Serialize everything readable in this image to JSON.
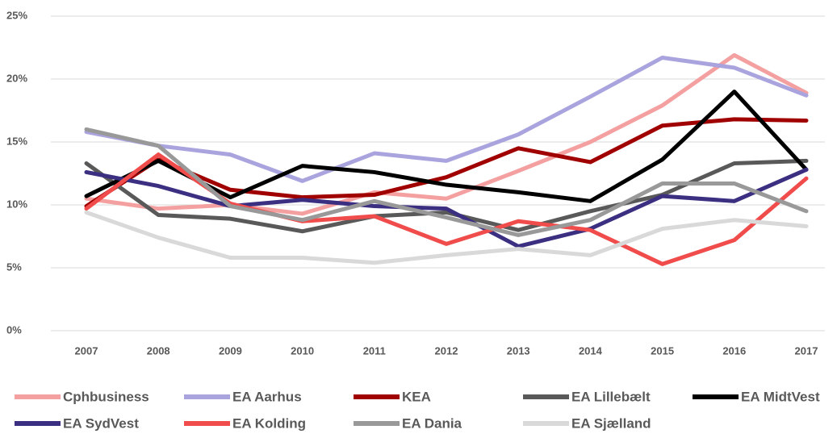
{
  "chart_data": {
    "type": "line",
    "categories": [
      "2007",
      "2008",
      "2009",
      "2010",
      "2011",
      "2012",
      "2013",
      "2014",
      "2015",
      "2016",
      "2017"
    ],
    "ylim": [
      0,
      25
    ],
    "yticks": [
      {
        "value": 0,
        "label": "0%"
      },
      {
        "value": 5,
        "label": "5%"
      },
      {
        "value": 10,
        "label": "10%"
      },
      {
        "value": 15,
        "label": "15%"
      },
      {
        "value": 20,
        "label": "20%"
      },
      {
        "value": 25,
        "label": "25%"
      }
    ],
    "grid": true,
    "legend": "bottom",
    "series": [
      {
        "name": "Cphbusiness",
        "color": "#f4a0a0",
        "values": [
          10.5,
          9.7,
          10.0,
          9.3,
          11.0,
          10.5,
          12.7,
          15.0,
          17.9,
          21.9,
          18.9
        ]
      },
      {
        "name": "EA Aarhus",
        "color": "#a9a4de",
        "values": [
          15.8,
          14.7,
          14.0,
          11.9,
          14.1,
          13.5,
          15.6,
          18.6,
          21.7,
          20.9,
          18.7
        ]
      },
      {
        "name": "KEA",
        "color": "#a00000",
        "values": [
          9.9,
          13.6,
          11.2,
          10.6,
          10.8,
          12.2,
          14.5,
          13.4,
          16.3,
          16.8,
          16.7
        ]
      },
      {
        "name": "EA Lillebælt",
        "color": "#595959",
        "values": [
          13.3,
          9.2,
          8.9,
          7.9,
          9.1,
          9.4,
          8.0,
          9.5,
          10.8,
          13.3,
          13.5
        ]
      },
      {
        "name": "EA MidtVest",
        "color": "#000000",
        "values": [
          10.7,
          13.5,
          10.6,
          13.1,
          12.6,
          11.6,
          11.0,
          10.3,
          13.6,
          19.0,
          12.8
        ]
      },
      {
        "name": "EA SydVest",
        "color": "#3a2f80",
        "values": [
          12.6,
          11.5,
          9.9,
          10.4,
          9.9,
          9.7,
          6.7,
          8.1,
          10.7,
          10.3,
          12.8
        ]
      },
      {
        "name": "EA Kolding",
        "color": "#f04c4c",
        "values": [
          9.7,
          14.0,
          10.1,
          8.7,
          9.1,
          6.9,
          8.7,
          8.0,
          5.3,
          7.2,
          12.1
        ]
      },
      {
        "name": "EA Dania",
        "color": "#999999",
        "values": [
          16.0,
          14.7,
          9.9,
          8.8,
          10.3,
          9.0,
          7.6,
          8.8,
          11.7,
          11.7,
          9.5
        ]
      },
      {
        "name": "EA Sjælland",
        "color": "#d9d9d9",
        "values": [
          9.4,
          7.4,
          5.8,
          5.8,
          5.4,
          6.0,
          6.5,
          6.0,
          8.1,
          8.8,
          8.3
        ]
      }
    ]
  }
}
